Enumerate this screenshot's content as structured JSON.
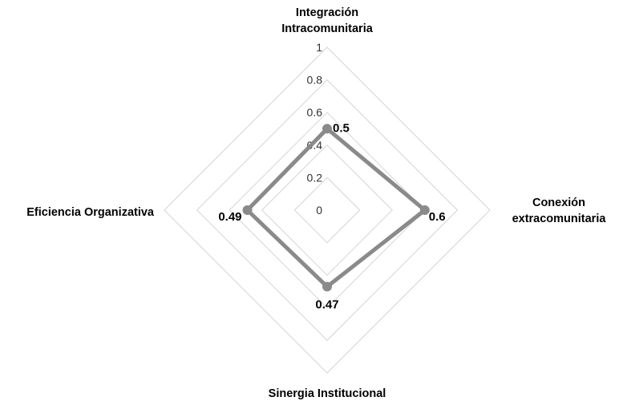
{
  "chart_data": {
    "type": "radar",
    "axes": [
      {
        "label": [
          "Integración",
          "Intracomunitaria"
        ]
      },
      {
        "label": [
          "Conexión",
          "extracomunitaria"
        ]
      },
      {
        "label": [
          "Sinergia Institucional"
        ]
      },
      {
        "label": [
          "Eficiencia Organizativa"
        ]
      }
    ],
    "series": [
      {
        "values": [
          0.5,
          0.6,
          0.47,
          0.49
        ],
        "color": "#8a8a8a"
      }
    ],
    "data_labels": [
      "0.5",
      "0.6",
      "0.47",
      "0.49"
    ],
    "radial_ticks": [
      "0",
      "0.2",
      "0.4",
      "0.6",
      "0.8",
      "1"
    ],
    "rlim": [
      0,
      1
    ],
    "grid": true,
    "legend": "none"
  }
}
